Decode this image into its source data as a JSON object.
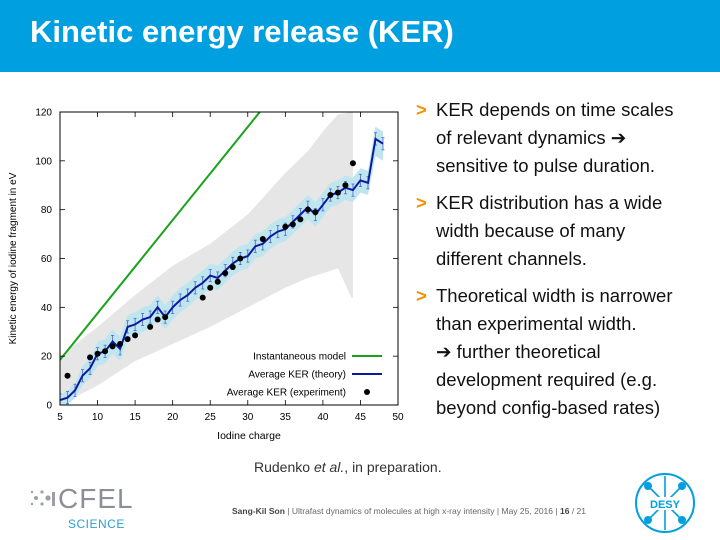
{
  "slide": {
    "title": "Kinetic energy release (KER)",
    "bullets": [
      {
        "marker": ">",
        "lines": [
          "KER depends on time scales",
          "of relevant dynamics ➔",
          "sensitive to pulse duration."
        ]
      },
      {
        "marker": ">",
        "lines": [
          "KER distribution has a wide",
          "width because of many",
          "different channels."
        ]
      },
      {
        "marker": ">",
        "lines": [
          "Theoretical width is narrower",
          "than experimental width.",
          "➔ further theoretical",
          "development required (e.g.",
          "beyond config-based rates)"
        ]
      }
    ],
    "citation": {
      "author": "Rudenko",
      "etal": "et al.",
      "rest": ", in preparation."
    },
    "footer": {
      "presenter": "Sang-Kil Son",
      "sep1": "|",
      "talk": "Ultrafast dynamics of molecules at high x-ray intensity",
      "sep2": "|",
      "date": "May 25, 2016",
      "sep3": "|",
      "page": "16",
      "total": "/ 21"
    },
    "logos": {
      "cfel_word": "CFEL",
      "cfel_sub": "SCIENCE",
      "desy_word": "DESY"
    }
  },
  "colors": {
    "title_bar": "#009fdf",
    "bullet_marker": "#f39200",
    "instantaneous": "#1aa31a",
    "theory": "#0a1a9e",
    "theory_band": "#bfe6ef",
    "experiment_band": "#e6e6e6",
    "experiment": "#000000"
  },
  "chart_data": {
    "type": "line",
    "xlabel": "Iodine charge",
    "ylabel": "Kinetic energy of iodine fragment in eV",
    "xlim": [
      5,
      50
    ],
    "ylim": [
      0,
      120
    ],
    "xticks": [
      5,
      10,
      15,
      20,
      25,
      30,
      35,
      40,
      45,
      50
    ],
    "yticks": [
      0,
      20,
      40,
      60,
      80,
      100,
      120
    ],
    "grid": false,
    "legend_position": "bottom-right",
    "legend": [
      "Instantaneous model",
      "Average KER (theory)",
      "Average KER (experiment)"
    ],
    "series": [
      {
        "name": "Instantaneous model",
        "kind": "line",
        "x": [
          5,
          31.6
        ],
        "y": [
          18.5,
          120
        ]
      },
      {
        "name": "Average KER (theory)",
        "kind": "line_errorbars",
        "x": [
          5,
          6,
          7,
          8,
          9,
          10,
          11,
          12,
          13,
          14,
          15,
          16,
          17,
          18,
          19,
          20,
          21,
          22,
          23,
          24,
          25,
          26,
          27,
          28,
          29,
          30,
          31,
          32,
          33,
          34,
          35,
          36,
          37,
          38,
          39,
          40,
          41,
          42,
          43,
          44,
          45,
          46,
          47,
          48
        ],
        "y": [
          2,
          3,
          6,
          12,
          15,
          21,
          22,
          26,
          23,
          32,
          33,
          35,
          36,
          40,
          36,
          40,
          43,
          45,
          48,
          50,
          53,
          52,
          55,
          58,
          60,
          61,
          65,
          66,
          69,
          71,
          72,
          75,
          78,
          81,
          78,
          82,
          86,
          87,
          89,
          88,
          92,
          91,
          109,
          107
        ],
        "band_lo": [
          0,
          0,
          3,
          8,
          11,
          16,
          17,
          21,
          18,
          27,
          28,
          30,
          31,
          35,
          31,
          35,
          38,
          40,
          43,
          45,
          48,
          47,
          50,
          53,
          55,
          56,
          60,
          61,
          64,
          66,
          67,
          70,
          73,
          76,
          73,
          77,
          81,
          82,
          84,
          83,
          87,
          86,
          102,
          100
        ],
        "band_hi": [
          4,
          6,
          9,
          16,
          19,
          26,
          27,
          31,
          28,
          37,
          38,
          40,
          41,
          45,
          41,
          45,
          48,
          50,
          53,
          55,
          58,
          57,
          60,
          63,
          65,
          66,
          70,
          71,
          74,
          76,
          77,
          80,
          83,
          86,
          83,
          87,
          91,
          92,
          94,
          93,
          97,
          96,
          114,
          112
        ]
      },
      {
        "name": "Average KER (experiment)",
        "kind": "scatter",
        "x": [
          6,
          9,
          10,
          11,
          12,
          13,
          14,
          15,
          17,
          18,
          19,
          24,
          25,
          26,
          27,
          28,
          29,
          32,
          35,
          36,
          37,
          38,
          39,
          41,
          42,
          43,
          44
        ],
        "y": [
          12,
          19.5,
          21,
          22,
          24,
          25,
          27,
          28.5,
          32,
          35,
          36,
          44,
          48,
          50.5,
          54,
          56.5,
          60,
          68,
          73,
          74,
          76,
          80,
          79,
          86,
          87,
          90,
          99
        ],
        "band_x": [
          5,
          10,
          15,
          20,
          25,
          30,
          35,
          38,
          40,
          42,
          43.8,
          44
        ],
        "band_lo": [
          0,
          8,
          18,
          25,
          32,
          40,
          48,
          52,
          54,
          56,
          44,
          44
        ],
        "band_hi": [
          20,
          32,
          45,
          57,
          66,
          78,
          95,
          104,
          112,
          119,
          120,
          120
        ]
      }
    ]
  }
}
